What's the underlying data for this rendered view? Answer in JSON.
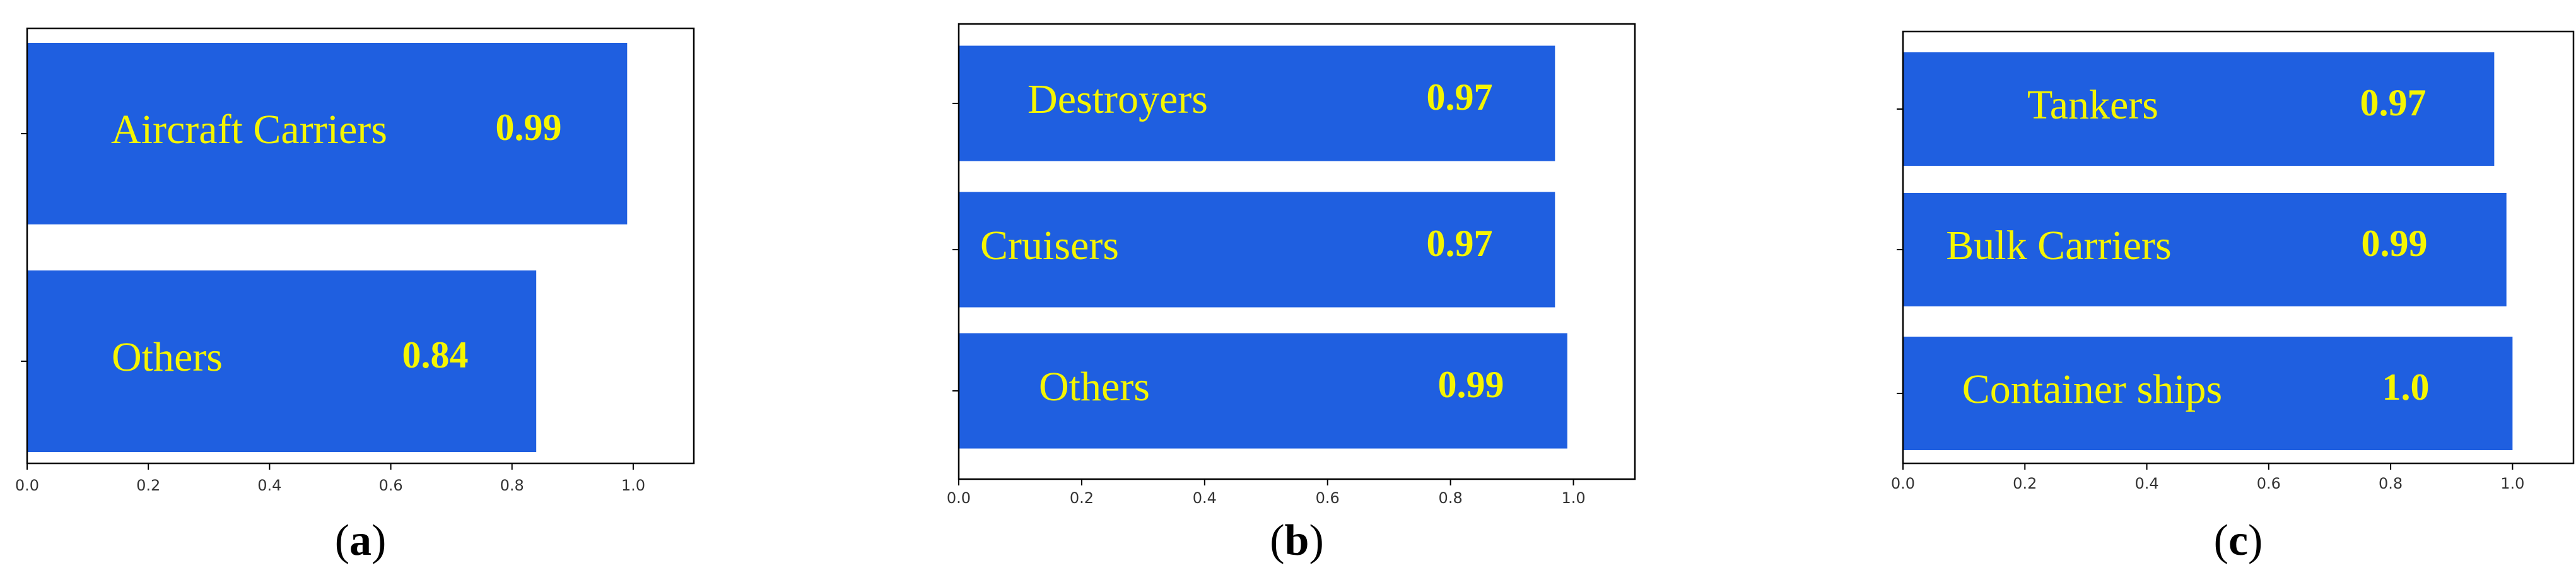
{
  "colors": {
    "bar": "#1f5fe0",
    "label_text": "#f5f500",
    "axis": "#000000",
    "background": "#ffffff"
  },
  "chart_data": [
    {
      "type": "bar",
      "orientation": "horizontal",
      "panel_label": "(a)",
      "panel_letter": "a",
      "categories": [
        "Aircraft Carriers",
        "Others"
      ],
      "values": [
        0.99,
        0.84
      ],
      "value_labels": [
        "0.99",
        "0.84"
      ],
      "xlim": [
        0,
        1.1
      ],
      "xticks": [
        0.0,
        0.2,
        0.4,
        0.6,
        0.8,
        1.0
      ],
      "xtick_labels": [
        "0.0",
        "0.2",
        "0.4",
        "0.6",
        "0.8",
        "1.0"
      ],
      "grid": false,
      "title": "",
      "xlabel": "",
      "ylabel": ""
    },
    {
      "type": "bar",
      "orientation": "horizontal",
      "panel_label": "(b)",
      "panel_letter": "b",
      "categories": [
        "Destroyers",
        "Cruisers",
        "Others"
      ],
      "values": [
        0.97,
        0.97,
        0.99
      ],
      "value_labels": [
        "0.97",
        "0.97",
        "0.99"
      ],
      "xlim": [
        0,
        1.1
      ],
      "xticks": [
        0.0,
        0.2,
        0.4,
        0.6,
        0.8,
        1.0
      ],
      "xtick_labels": [
        "0.0",
        "0.2",
        "0.4",
        "0.6",
        "0.8",
        "1.0"
      ],
      "grid": false,
      "title": "",
      "xlabel": "",
      "ylabel": ""
    },
    {
      "type": "bar",
      "orientation": "horizontal",
      "panel_label": "(c)",
      "panel_letter": "c",
      "categories": [
        "Tankers",
        "Bulk Carriers",
        "Container ships"
      ],
      "values": [
        0.97,
        0.99,
        1.0
      ],
      "value_labels": [
        "0.97",
        "0.99",
        "1.0"
      ],
      "xlim": [
        0,
        1.1
      ],
      "xticks": [
        0.0,
        0.2,
        0.4,
        0.6,
        0.8,
        1.0
      ],
      "xtick_labels": [
        "0.0",
        "0.2",
        "0.4",
        "0.6",
        "0.8",
        "1.0"
      ],
      "grid": false,
      "title": "",
      "xlabel": "",
      "ylabel": ""
    }
  ]
}
